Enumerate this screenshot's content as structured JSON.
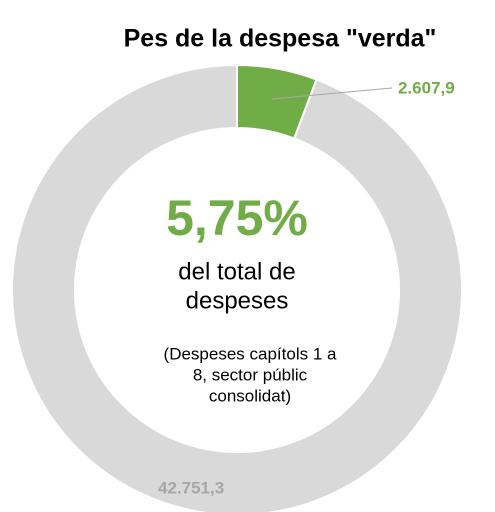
{
  "chart_data": {
    "type": "donut",
    "title": "Pes de la despesa \"verda\"",
    "values": [
      2607.9,
      42751.3
    ],
    "value_labels": [
      "2.607,9",
      "42.751,3"
    ],
    "colors": [
      "#70ad47",
      "#d9d9d9"
    ],
    "center_value": "5,75%",
    "annotations": [
      "del total de",
      "despeses",
      "(Despeses capítols 1 a",
      "8, sector públic",
      "consolidat)"
    ]
  }
}
